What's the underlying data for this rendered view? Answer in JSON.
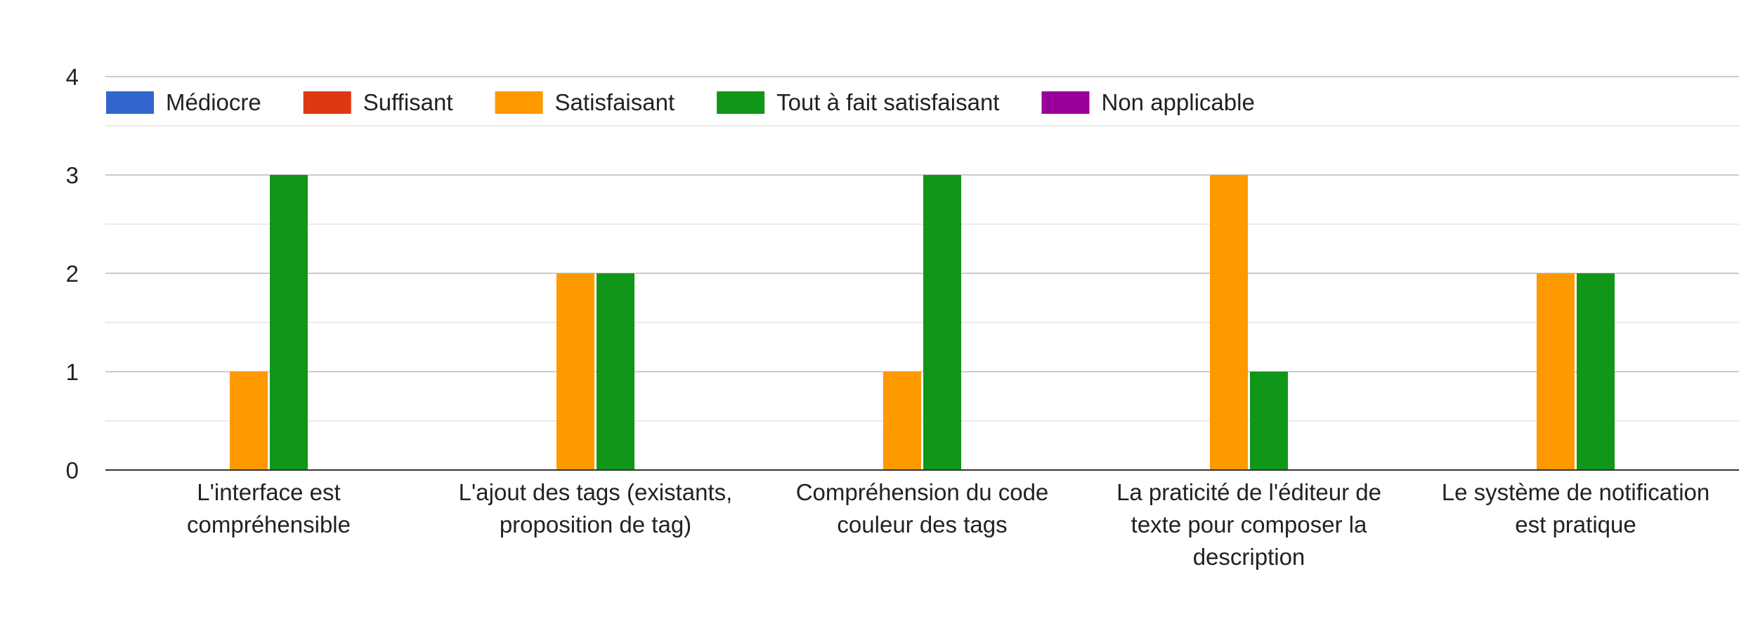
{
  "chart_data": {
    "type": "bar",
    "categories": [
      [
        "L'interface est",
        "compréhensible"
      ],
      [
        "L'ajout des tags (existants,",
        "proposition de tag)"
      ],
      [
        "Compréhension du code",
        "couleur des tags"
      ],
      [
        "La praticité de l'éditeur de",
        "texte pour composer la",
        "description"
      ],
      [
        "Le système de notification",
        "est pratique"
      ]
    ],
    "series": [
      {
        "name": "Médiocre",
        "color": "#3366cc",
        "values": [
          0,
          0,
          0,
          0,
          0
        ]
      },
      {
        "name": "Suffisant",
        "color": "#dc3912",
        "values": [
          0,
          0,
          0,
          0,
          0
        ]
      },
      {
        "name": "Satisfaisant",
        "color": "#ff9900",
        "values": [
          1,
          2,
          1,
          3,
          2
        ]
      },
      {
        "name": "Tout à fait satisfaisant",
        "color": "#109618",
        "values": [
          3,
          2,
          3,
          1,
          2
        ]
      },
      {
        "name": "Non applicable",
        "color": "#990099",
        "values": [
          0,
          0,
          0,
          0,
          0
        ]
      }
    ],
    "yticks": [
      "0",
      "1",
      "2",
      "3",
      "4"
    ],
    "ylim": [
      0,
      4
    ],
    "grid": true,
    "legend": "top"
  }
}
